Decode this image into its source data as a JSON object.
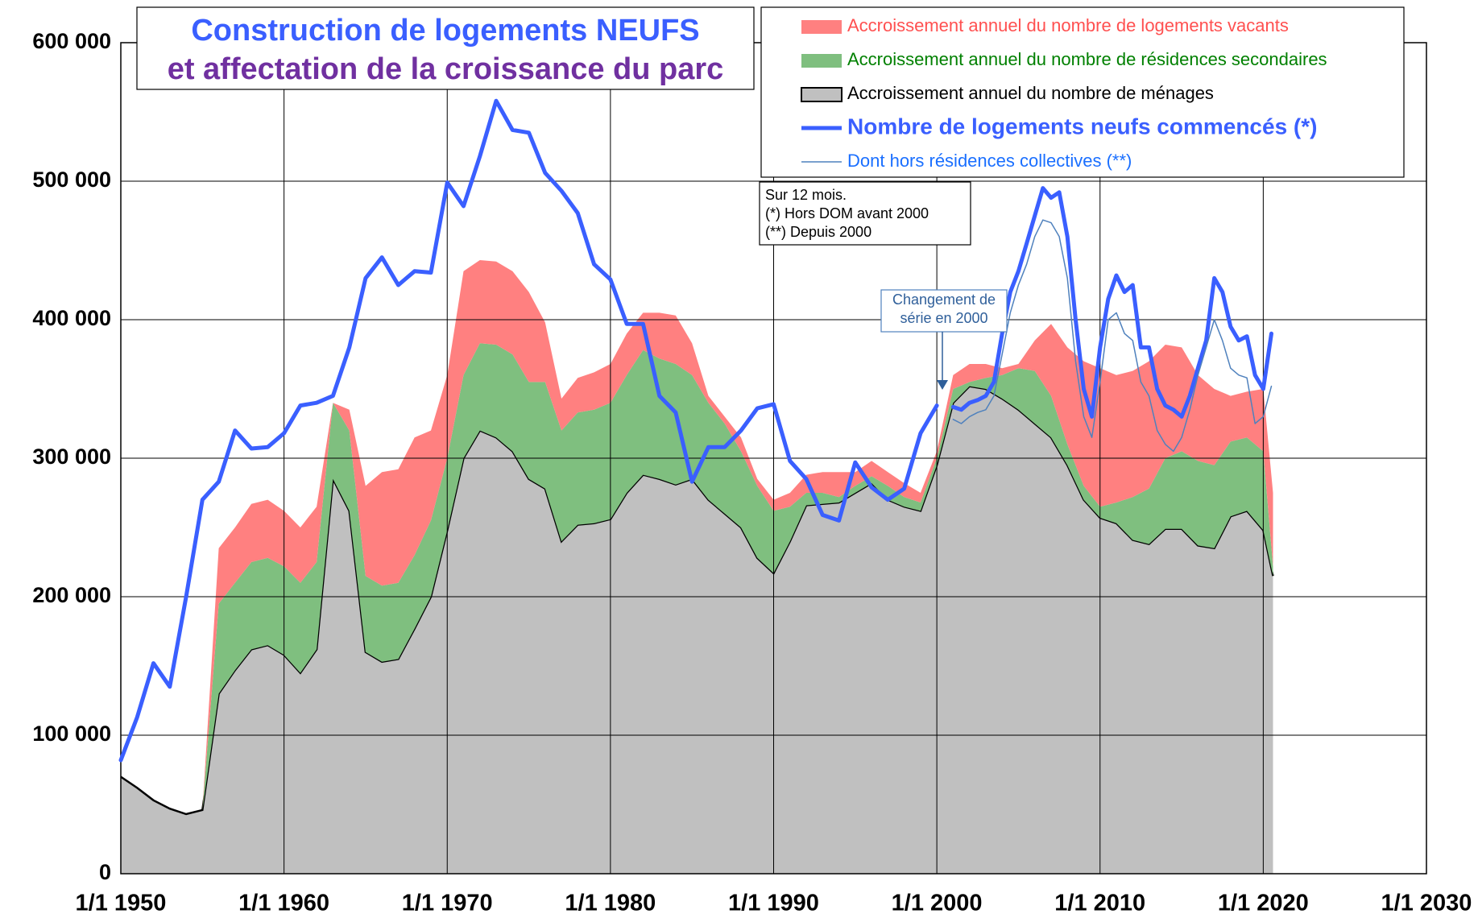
{
  "chart_data": {
    "type": "stacked_area_line",
    "title": "Construction de logements NEUFS",
    "subtitle": "et affectation de la croissance du parc",
    "xlim": [
      1950,
      2030
    ],
    "xticks": [
      {
        "value": 1950,
        "label": "1/1 1950"
      },
      {
        "value": 1960,
        "label": "1/1 1960"
      },
      {
        "value": 1970,
        "label": "1/1 1970"
      },
      {
        "value": 1980,
        "label": "1/1 1980"
      },
      {
        "value": 1990,
        "label": "1/1 1990"
      },
      {
        "value": 2000,
        "label": "1/1 2000"
      },
      {
        "value": 2010,
        "label": "1/1 2010"
      },
      {
        "value": 2020,
        "label": "1/1 2020"
      },
      {
        "value": 2030,
        "label": "1/1 2030"
      }
    ],
    "ylim": [
      0,
      600000
    ],
    "yticks": [
      0,
      {
        "value": 100000,
        "label": "100 000"
      },
      {
        "value": 200000,
        "label": "200 000"
      },
      {
        "value": 300000,
        "label": "300 000"
      },
      {
        "value": 400000,
        "label": "400 000"
      },
      {
        "value": 500000,
        "label": "500 000"
      },
      {
        "value": 600000,
        "label": "600 000"
      }
    ],
    "grid": true,
    "legend": "top-right",
    "x": [
      1950,
      1951,
      1952,
      1953,
      1954,
      1955,
      1956,
      1957,
      1958,
      1959,
      1960,
      1961,
      1962,
      1963,
      1964,
      1965,
      1966,
      1967,
      1968,
      1969,
      1970,
      1971,
      1972,
      1973,
      1974,
      1975,
      1976,
      1977,
      1978,
      1979,
      1980,
      1981,
      1982,
      1983,
      1984,
      1985,
      1986,
      1987,
      1988,
      1989,
      1990,
      1991,
      1992,
      1993,
      1994,
      1995,
      1996,
      1997,
      1998,
      1999,
      2000,
      2001,
      2002,
      2003,
      2004,
      2005,
      2006,
      2007,
      2008,
      2009,
      2010,
      2011,
      2012,
      2013,
      2014,
      2015,
      2016,
      2017,
      2018,
      2019,
      2020,
      2020.6
    ],
    "series": [
      {
        "name": "Accroissement annuel du nombre de logements vacants",
        "type": "area",
        "color": "#ff8080",
        "label_color": "#ff5050",
        "values": [
          null,
          null,
          null,
          null,
          null,
          0,
          40000,
          40000,
          42000,
          42000,
          40000,
          40000,
          40000,
          0,
          15000,
          65000,
          82000,
          82000,
          85000,
          65000,
          60000,
          75000,
          60000,
          60000,
          60000,
          65000,
          43000,
          23000,
          25000,
          27000,
          28000,
          30000,
          27000,
          33000,
          35000,
          23000,
          5000,
          5000,
          10000,
          5000,
          8000,
          10000,
          13000,
          15000,
          18000,
          10000,
          11000,
          10000,
          10000,
          7000,
          5000,
          10000,
          13000,
          10000,
          5000,
          3000,
          22000,
          52000,
          70000,
          90000,
          100000,
          92000,
          91000,
          92000,
          82000,
          75000,
          62000,
          55000,
          33000,
          33000,
          45000,
          53000
        ]
      },
      {
        "name": "Accroissement annuel du nombre de résidences secondaires",
        "type": "area",
        "color": "#7fbf7f",
        "label_color": "#008000",
        "values": [
          null,
          null,
          null,
          null,
          null,
          0,
          65000,
          63000,
          63000,
          63000,
          64000,
          65000,
          63000,
          55000,
          58000,
          55000,
          55000,
          55000,
          53000,
          55000,
          52000,
          60000,
          63000,
          67000,
          70000,
          70000,
          77000,
          80000,
          81000,
          82000,
          84000,
          85000,
          90000,
          87000,
          87000,
          75000,
          70000,
          65000,
          55000,
          52000,
          45000,
          25000,
          9000,
          8000,
          4000,
          5000,
          5000,
          10000,
          7000,
          6000,
          5000,
          10000,
          3000,
          8000,
          17000,
          30000,
          38000,
          30000,
          15000,
          10000,
          8000,
          15000,
          31000,
          40000,
          51000,
          56000,
          61000,
          60000,
          54000,
          53000,
          57000,
          7000
        ]
      },
      {
        "name": "Accroissement annuel du nombre de ménages",
        "type": "area",
        "color": "#c0c0c0",
        "stroke": "#000000",
        "label_color": "#000000",
        "values": [
          70000,
          62000,
          53000,
          47000,
          43000,
          46000,
          130000,
          147000,
          162000,
          165000,
          158000,
          145000,
          162000,
          285000,
          262000,
          160000,
          153000,
          155000,
          177000,
          200000,
          248000,
          300000,
          320000,
          315000,
          305000,
          285000,
          278000,
          240000,
          252000,
          253000,
          256000,
          275000,
          288000,
          285000,
          281000,
          285000,
          270000,
          260000,
          250000,
          228000,
          217000,
          240000,
          266000,
          267000,
          268000,
          275000,
          282000,
          270000,
          265000,
          262000,
          295000,
          340000,
          352000,
          350000,
          343000,
          335000,
          325000,
          315000,
          295000,
          270000,
          257000,
          253000,
          241000,
          238000,
          249000,
          249000,
          237000,
          235000,
          258000,
          262000,
          248000,
          215000
        ]
      },
      {
        "name": "Nombre de logements neufs commencés (*)",
        "type": "line",
        "color": "#3a5fff",
        "width": 5,
        "label_color": "#3a5fff",
        "bold": true,
        "x": [
          1950,
          1951,
          1952,
          1953,
          1954,
          1955,
          1956,
          1957,
          1958,
          1959,
          1960,
          1961,
          1962,
          1963,
          1964,
          1965,
          1966,
          1967,
          1968,
          1969,
          1970,
          1971,
          1972,
          1973,
          1974,
          1975,
          1976,
          1977,
          1978,
          1979,
          1980,
          1981,
          1982,
          1983,
          1984,
          1985,
          1986,
          1987,
          1988,
          1989,
          1990,
          1991,
          1992,
          1993,
          1994,
          1995,
          1996,
          1997,
          1998,
          1999,
          2000,
          2000.5,
          2001,
          2001.5,
          2002,
          2002.5,
          2003,
          2003.5,
          2004,
          2004.5,
          2005,
          2005.5,
          2006,
          2006.5,
          2007,
          2007.5,
          2008,
          2008.5,
          2009,
          2009.5,
          2010,
          2010.5,
          2011,
          2011.5,
          2012,
          2012.5,
          2013,
          2013.5,
          2014,
          2014.5,
          2015,
          2015.5,
          2016,
          2016.5,
          2017,
          2017.5,
          2018,
          2018.5,
          2019,
          2019.5,
          2020,
          2020.5
        ],
        "values": [
          82000,
          113000,
          152000,
          135000,
          200000,
          270000,
          283000,
          320000,
          307000,
          308000,
          318000,
          338000,
          340000,
          345000,
          380000,
          430000,
          445000,
          425000,
          435000,
          434000,
          499000,
          482000,
          518000,
          558000,
          537000,
          535000,
          506000,
          493000,
          477000,
          440000,
          429000,
          397000,
          397000,
          345000,
          333000,
          283000,
          308000,
          308000,
          320000,
          336000,
          339000,
          298000,
          285000,
          259000,
          255000,
          297000,
          279000,
          270000,
          278000,
          318000,
          338000,
          null,
          337000,
          335000,
          340000,
          342000,
          345000,
          355000,
          390000,
          420000,
          435000,
          455000,
          475000,
          495000,
          488000,
          492000,
          460000,
          400000,
          350000,
          330000,
          380000,
          415000,
          432000,
          420000,
          425000,
          380000,
          380000,
          350000,
          338000,
          335000,
          330000,
          345000,
          365000,
          385000,
          430000,
          420000,
          395000,
          385000,
          388000,
          360000,
          350000,
          390000
        ]
      },
      {
        "name": "Dont hors résidences collectives (**)",
        "type": "line",
        "color": "#4f81bd",
        "width": 1.5,
        "label_color": "#1a6fff",
        "x": [
          2001,
          2001.5,
          2002,
          2002.5,
          2003,
          2003.5,
          2004,
          2004.5,
          2005,
          2005.5,
          2006,
          2006.5,
          2007,
          2007.5,
          2008,
          2008.5,
          2009,
          2009.5,
          2010,
          2010.5,
          2011,
          2011.5,
          2012,
          2012.5,
          2013,
          2013.5,
          2014,
          2014.5,
          2015,
          2015.5,
          2016,
          2016.5,
          2017,
          2017.5,
          2018,
          2018.5,
          2019,
          2019.5,
          2020,
          2020.5
        ],
        "values": [
          328000,
          325000,
          330000,
          333000,
          335000,
          345000,
          375000,
          405000,
          425000,
          440000,
          460000,
          472000,
          470000,
          460000,
          430000,
          370000,
          330000,
          315000,
          355000,
          400000,
          405000,
          390000,
          385000,
          355000,
          345000,
          320000,
          310000,
          305000,
          315000,
          335000,
          360000,
          380000,
          400000,
          385000,
          365000,
          360000,
          358000,
          325000,
          330000,
          352000
        ]
      }
    ],
    "annotations": [
      {
        "lines": [
          "Sur 12 mois.",
          "(*) Hors DOM avant 2000",
          "(**) Depuis 2000"
        ]
      },
      {
        "lines": [
          "Changement de",
          "série en 2000"
        ]
      }
    ]
  }
}
